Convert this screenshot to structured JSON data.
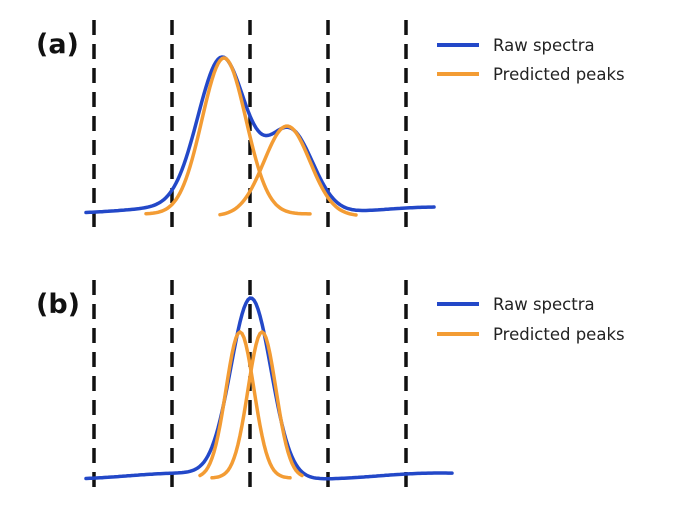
{
  "colors": {
    "raw": "#2348c8",
    "predicted": "#f39c34",
    "dashed": "#111111"
  },
  "panels": [
    {
      "label": "(a)",
      "legend": [
        {
          "text": "Raw spectra",
          "series": "raw"
        },
        {
          "text": "Predicted peaks",
          "series": "predicted"
        }
      ]
    },
    {
      "label": "(b)",
      "legend": [
        {
          "text": "Raw spectra",
          "series": "raw"
        },
        {
          "text": "Predicted peaks",
          "series": "predicted"
        }
      ]
    }
  ]
}
